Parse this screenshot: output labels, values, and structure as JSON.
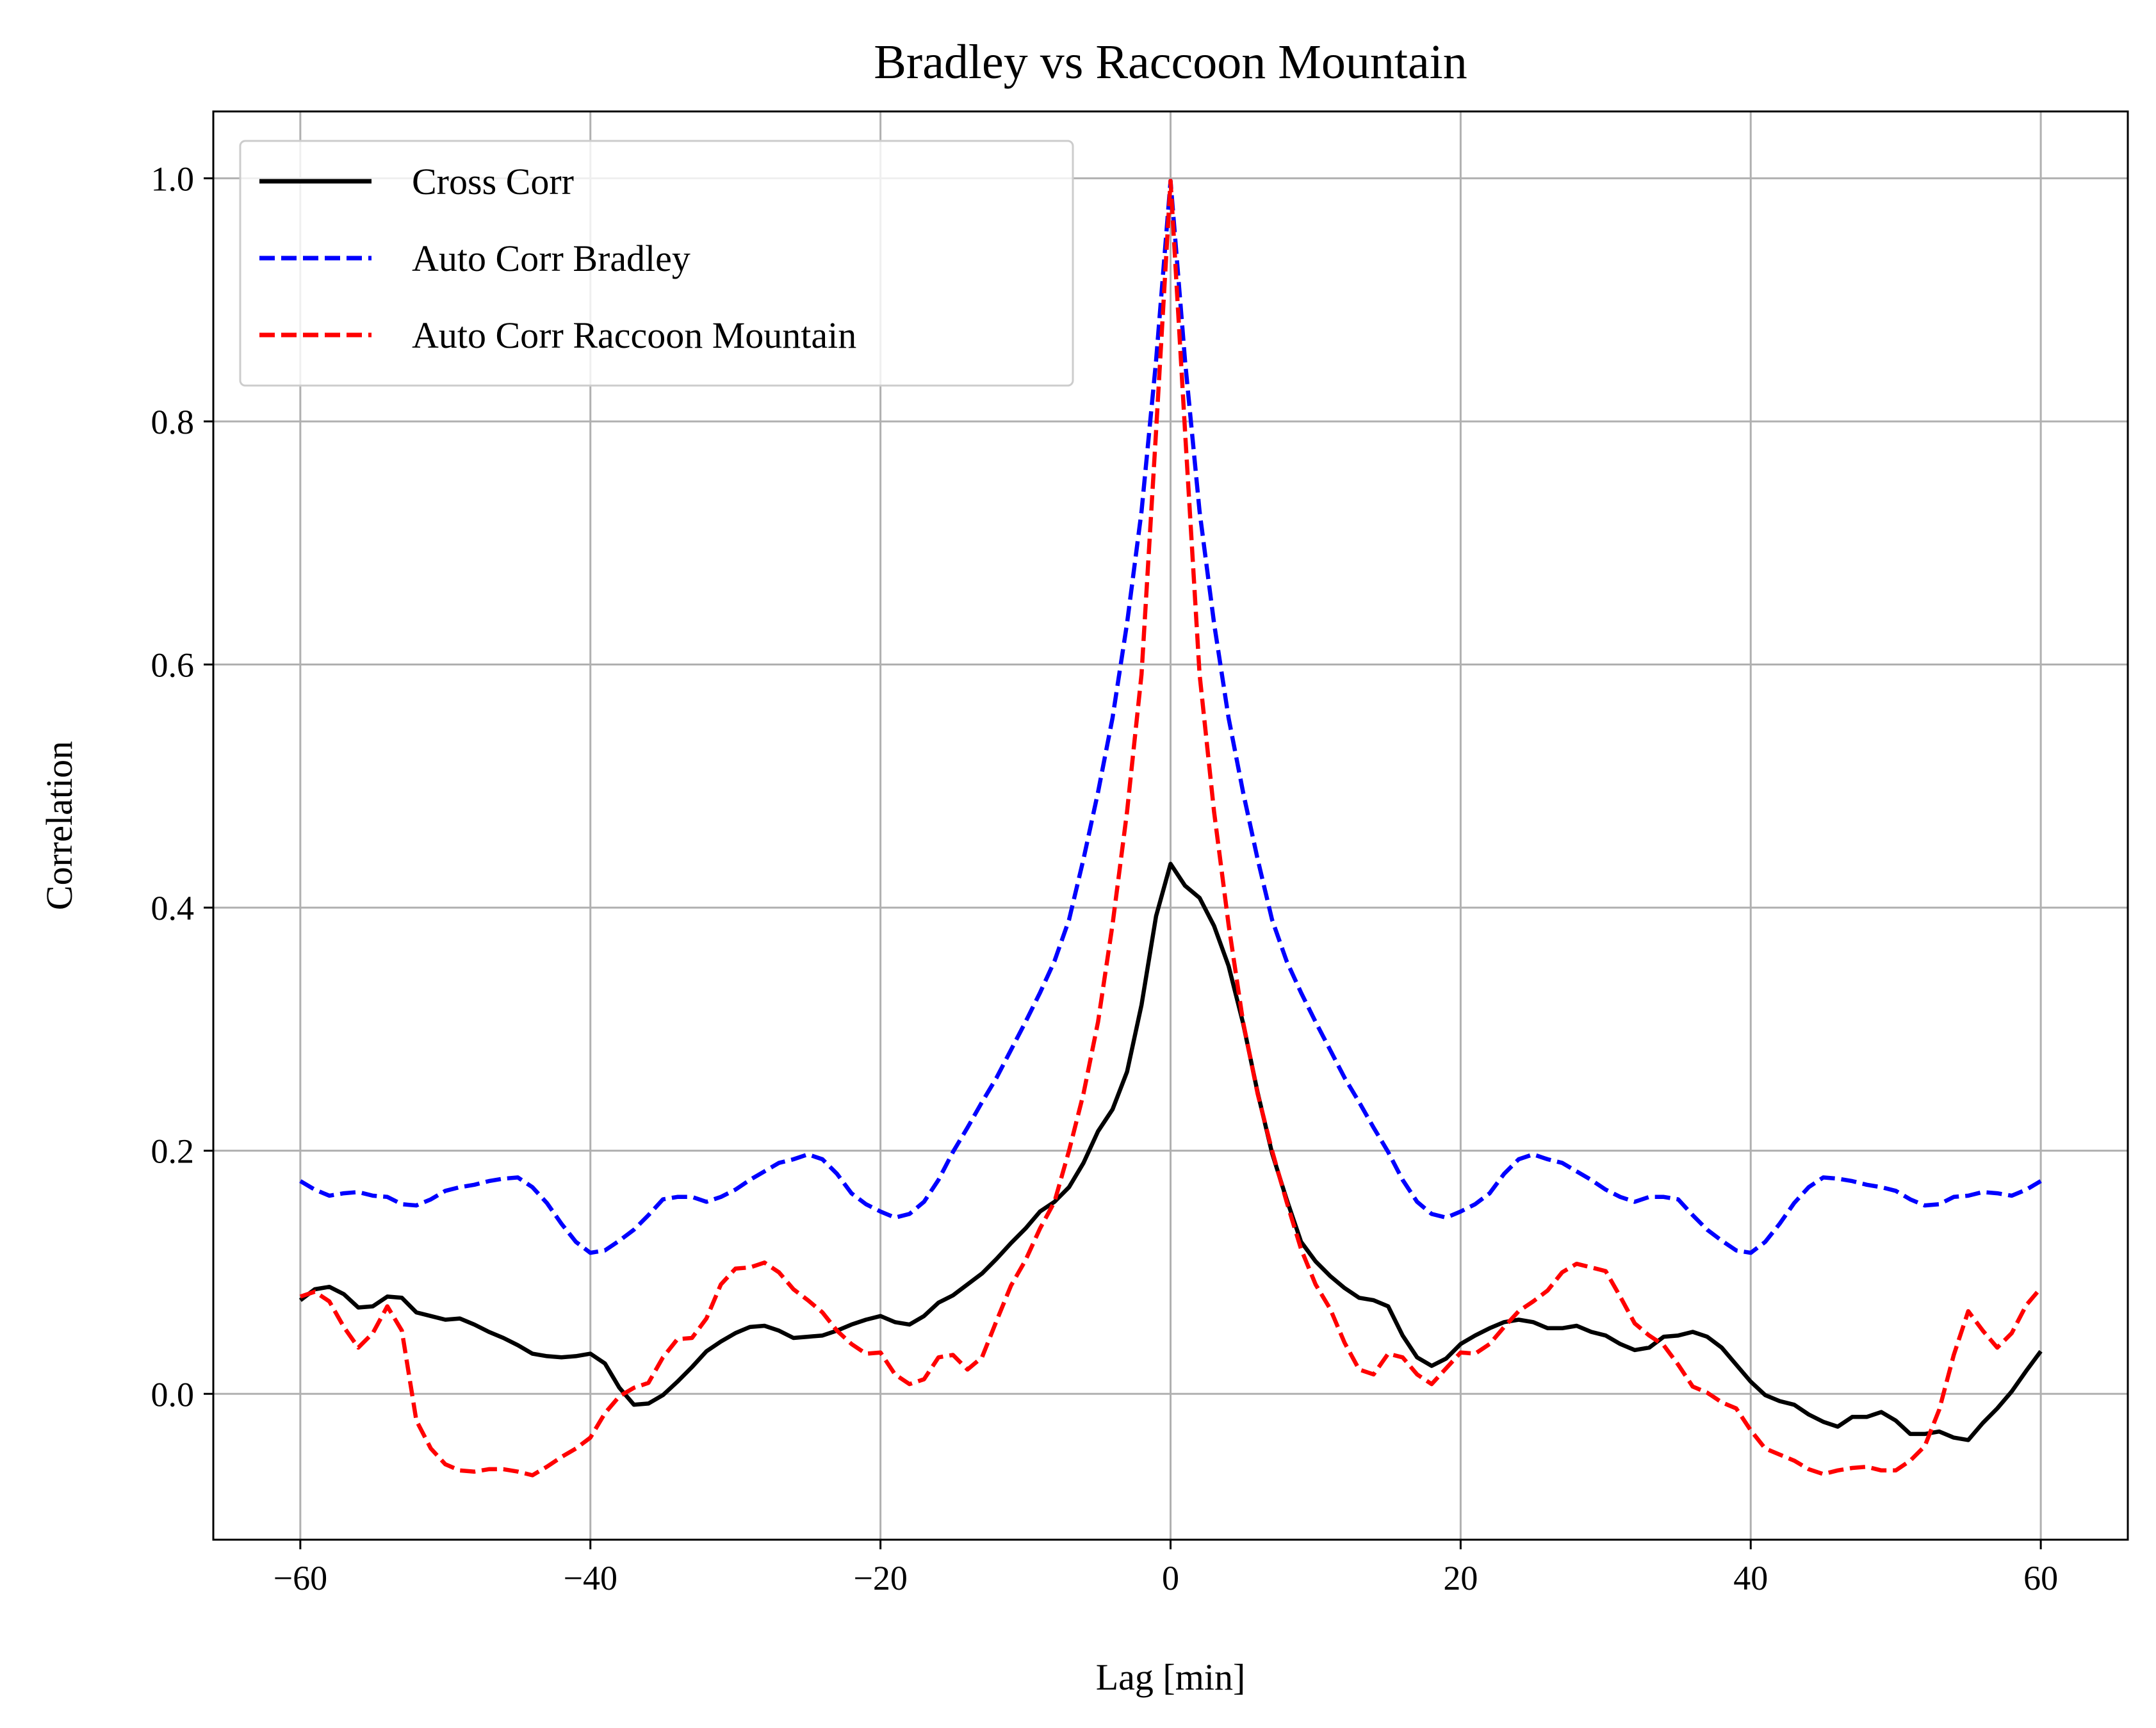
{
  "chart_data": {
    "type": "line",
    "title": "Bradley vs Raccoon Mountain",
    "xlabel": "Lag [min]",
    "ylabel": "Correlation",
    "xlim": [
      -66,
      66
    ],
    "ylim": [
      -0.12,
      1.055
    ],
    "xticks": [
      -60,
      -40,
      -20,
      0,
      20,
      40,
      60
    ],
    "xtick_labels": [
      "−60",
      "−40",
      "−20",
      "0",
      "20",
      "40",
      "60"
    ],
    "yticks": [
      0.0,
      0.2,
      0.4,
      0.6,
      0.8,
      1.0
    ],
    "ytick_labels": [
      "0.0",
      "0.2",
      "0.4",
      "0.6",
      "0.8",
      "1.0"
    ],
    "grid": true,
    "legend_position": "upper-left",
    "series": [
      {
        "name": "Cross Corr",
        "color": "#000000",
        "style": "solid",
        "x": [
          -60,
          -59,
          -58,
          -57,
          -56,
          -55,
          -54,
          -53,
          -52,
          -51,
          -50,
          -49,
          -48,
          -47,
          -46,
          -45,
          -44,
          -43,
          -42,
          -41,
          -40,
          -39,
          -38,
          -37,
          -36,
          -35,
          -34,
          -33,
          -32,
          -31,
          -30,
          -29,
          -28,
          -27,
          -26,
          -25,
          -24,
          -23,
          -22,
          -21,
          -20,
          -19,
          -18,
          -17,
          -16,
          -15,
          -14,
          -13,
          -12,
          -11,
          -10,
          -9,
          -8,
          -7,
          -6,
          -5,
          -4,
          -3,
          -2,
          -1,
          0,
          1,
          2,
          3,
          4,
          5,
          6,
          7,
          8,
          9,
          10,
          11,
          12,
          13,
          14,
          15,
          16,
          17,
          18,
          19,
          20,
          21,
          22,
          23,
          24,
          25,
          26,
          27,
          28,
          29,
          30,
          31,
          32,
          33,
          34,
          35,
          36,
          37,
          38,
          39,
          40,
          41,
          42,
          43,
          44,
          45,
          46,
          47,
          48,
          49,
          50,
          51,
          52,
          53,
          54,
          55,
          56,
          57,
          58,
          59,
          60
        ],
        "y": [
          0.077,
          0.086,
          0.088,
          0.082,
          0.071,
          0.072,
          0.08,
          0.079,
          0.067,
          0.064,
          0.061,
          0.062,
          0.057,
          0.051,
          0.046,
          0.04,
          0.033,
          0.031,
          0.03,
          0.031,
          0.033,
          0.025,
          0.005,
          -0.009,
          -0.008,
          -0.001,
          0.01,
          0.022,
          0.035,
          0.043,
          0.05,
          0.055,
          0.056,
          0.052,
          0.046,
          0.047,
          0.048,
          0.052,
          0.057,
          0.061,
          0.064,
          0.059,
          0.057,
          0.064,
          0.075,
          0.081,
          0.09,
          0.099,
          0.111,
          0.124,
          0.136,
          0.15,
          0.158,
          0.17,
          0.19,
          0.216,
          0.234,
          0.265,
          0.32,
          0.393,
          0.436,
          0.418,
          0.408,
          0.385,
          0.352,
          0.305,
          0.248,
          0.198,
          0.16,
          0.125,
          0.109,
          0.097,
          0.087,
          0.079,
          0.077,
          0.072,
          0.048,
          0.03,
          0.023,
          0.029,
          0.041,
          0.048,
          0.054,
          0.059,
          0.061,
          0.059,
          0.054,
          0.054,
          0.056,
          0.051,
          0.048,
          0.041,
          0.036,
          0.038,
          0.047,
          0.048,
          0.051,
          0.047,
          0.038,
          0.024,
          0.01,
          -0.001,
          -0.006,
          -0.009,
          -0.017,
          -0.023,
          -0.027,
          -0.019,
          -0.019,
          -0.015,
          -0.022,
          -0.033,
          -0.033,
          -0.031,
          -0.036,
          -0.038,
          -0.024,
          -0.012,
          0.002,
          0.019,
          0.035
        ]
      },
      {
        "name": "Auto Corr Bradley",
        "color": "#0000ff",
        "style": "dashed",
        "x": [
          -60,
          -59,
          -58,
          -57,
          -56,
          -55,
          -54,
          -53,
          -52,
          -51,
          -50,
          -49,
          -48,
          -47,
          -46,
          -45,
          -44,
          -43,
          -42,
          -41,
          -40,
          -39,
          -38,
          -37,
          -36,
          -35,
          -34,
          -33,
          -32,
          -31,
          -30,
          -29,
          -28,
          -27,
          -26,
          -25,
          -24,
          -23,
          -22,
          -21,
          -20,
          -19,
          -18,
          -17,
          -16,
          -15,
          -14,
          -13,
          -12,
          -11,
          -10,
          -9,
          -8,
          -7,
          -6,
          -5,
          -4,
          -3,
          -2,
          -1,
          0,
          1,
          2,
          3,
          4,
          5,
          6,
          7,
          8,
          9,
          10,
          11,
          12,
          13,
          14,
          15,
          16,
          17,
          18,
          19,
          20,
          21,
          22,
          23,
          24,
          25,
          26,
          27,
          28,
          29,
          30,
          31,
          32,
          33,
          34,
          35,
          36,
          37,
          38,
          39,
          40,
          41,
          42,
          43,
          44,
          45,
          46,
          47,
          48,
          49,
          50,
          51,
          52,
          53,
          54,
          55,
          56,
          57,
          58,
          59,
          60
        ],
        "y": [
          0.175,
          0.168,
          0.163,
          0.165,
          0.166,
          0.163,
          0.162,
          0.156,
          0.155,
          0.16,
          0.167,
          0.17,
          0.172,
          0.175,
          0.177,
          0.178,
          0.17,
          0.157,
          0.14,
          0.125,
          0.116,
          0.118,
          0.126,
          0.135,
          0.147,
          0.16,
          0.162,
          0.162,
          0.158,
          0.162,
          0.168,
          0.176,
          0.183,
          0.19,
          0.193,
          0.197,
          0.193,
          0.181,
          0.165,
          0.156,
          0.15,
          0.145,
          0.148,
          0.158,
          0.176,
          0.199,
          0.219,
          0.24,
          0.26,
          0.283,
          0.306,
          0.33,
          0.356,
          0.39,
          0.44,
          0.495,
          0.556,
          0.634,
          0.726,
          0.85,
          0.998,
          0.85,
          0.726,
          0.634,
          0.556,
          0.495,
          0.44,
          0.39,
          0.356,
          0.33,
          0.306,
          0.283,
          0.26,
          0.24,
          0.219,
          0.199,
          0.176,
          0.158,
          0.148,
          0.145,
          0.15,
          0.156,
          0.165,
          0.181,
          0.193,
          0.197,
          0.193,
          0.19,
          0.183,
          0.176,
          0.168,
          0.162,
          0.158,
          0.162,
          0.162,
          0.16,
          0.147,
          0.135,
          0.126,
          0.118,
          0.116,
          0.125,
          0.14,
          0.157,
          0.17,
          0.178,
          0.177,
          0.175,
          0.172,
          0.17,
          0.167,
          0.16,
          0.155,
          0.156,
          0.162,
          0.163,
          0.166,
          0.165,
          0.163,
          0.168,
          0.175
        ]
      },
      {
        "name": "Auto Corr Raccoon Mountain",
        "color": "#ff0000",
        "style": "dashed",
        "x": [
          -60,
          -59,
          -58,
          -57,
          -56,
          -55,
          -54,
          -53,
          -52,
          -51,
          -50,
          -49,
          -48,
          -47,
          -46,
          -45,
          -44,
          -43,
          -42,
          -41,
          -40,
          -39,
          -38,
          -37,
          -36,
          -35,
          -34,
          -33,
          -32,
          -31,
          -30,
          -29,
          -28,
          -27,
          -26,
          -25,
          -24,
          -23,
          -22,
          -21,
          -20,
          -19,
          -18,
          -17,
          -16,
          -15,
          -14,
          -13,
          -12,
          -11,
          -10,
          -9,
          -8,
          -7,
          -6,
          -5,
          -4,
          -3,
          -2,
          -1,
          0,
          1,
          2,
          3,
          4,
          5,
          6,
          7,
          8,
          9,
          10,
          11,
          12,
          13,
          14,
          15,
          16,
          17,
          18,
          19,
          20,
          21,
          22,
          23,
          24,
          25,
          26,
          27,
          28,
          29,
          30,
          31,
          32,
          33,
          34,
          35,
          36,
          37,
          38,
          39,
          40,
          41,
          42,
          43,
          44,
          45,
          46,
          47,
          48,
          49,
          50,
          51,
          52,
          53,
          54,
          55,
          56,
          57,
          58,
          59,
          60
        ],
        "y": [
          0.08,
          0.084,
          0.076,
          0.055,
          0.038,
          0.05,
          0.072,
          0.052,
          -0.022,
          -0.045,
          -0.058,
          -0.063,
          -0.064,
          -0.062,
          -0.062,
          -0.064,
          -0.067,
          -0.06,
          -0.052,
          -0.045,
          -0.036,
          -0.016,
          -0.002,
          0.005,
          0.009,
          0.03,
          0.045,
          0.046,
          0.062,
          0.09,
          0.103,
          0.104,
          0.108,
          0.1,
          0.086,
          0.077,
          0.067,
          0.052,
          0.041,
          0.033,
          0.034,
          0.016,
          0.008,
          0.012,
          0.03,
          0.032,
          0.02,
          0.03,
          0.06,
          0.089,
          0.11,
          0.136,
          0.158,
          0.2,
          0.247,
          0.306,
          0.386,
          0.479,
          0.592,
          0.792,
          0.998,
          0.792,
          0.592,
          0.479,
          0.386,
          0.306,
          0.247,
          0.2,
          0.158,
          0.119,
          0.09,
          0.07,
          0.042,
          0.02,
          0.016,
          0.033,
          0.03,
          0.016,
          0.008,
          0.021,
          0.034,
          0.033,
          0.041,
          0.055,
          0.068,
          0.076,
          0.085,
          0.1,
          0.107,
          0.104,
          0.101,
          0.08,
          0.058,
          0.048,
          0.04,
          0.024,
          0.006,
          0.001,
          -0.007,
          -0.012,
          -0.03,
          -0.045,
          -0.05,
          -0.055,
          -0.062,
          -0.066,
          -0.063,
          -0.061,
          -0.06,
          -0.063,
          -0.063,
          -0.055,
          -0.043,
          -0.013,
          0.032,
          0.068,
          0.052,
          0.038,
          0.05,
          0.073,
          0.087
        ]
      }
    ]
  }
}
